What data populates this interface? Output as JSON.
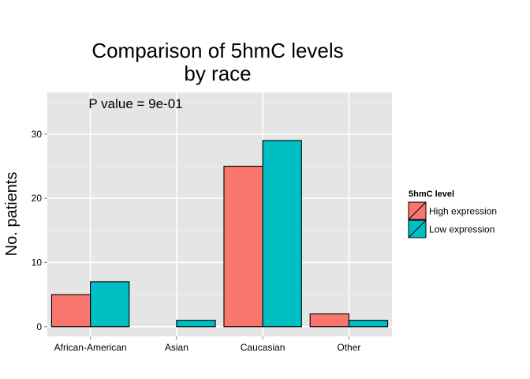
{
  "chart_data": {
    "type": "bar",
    "title_lines": [
      "Comparison of 5hmC levels",
      "by race"
    ],
    "xlabel": "",
    "ylabel": "No. patients",
    "categories": [
      "African-American",
      "Asian",
      "Caucasian",
      "Other"
    ],
    "series": [
      {
        "name": "High expression",
        "values": [
          5,
          0,
          25,
          2
        ],
        "color": "#F8766D"
      },
      {
        "name": "Low expression",
        "values": [
          7,
          1,
          29,
          1
        ],
        "color": "#00BFC4"
      }
    ],
    "ylim": [
      -1.5,
      36.5
    ],
    "yticks": [
      0,
      10,
      20,
      30
    ],
    "grid": true,
    "legend": {
      "title": "5hmC level",
      "position": "right"
    },
    "annotation": "P value = 9e-01",
    "panel_color": "#E5E5E5"
  }
}
